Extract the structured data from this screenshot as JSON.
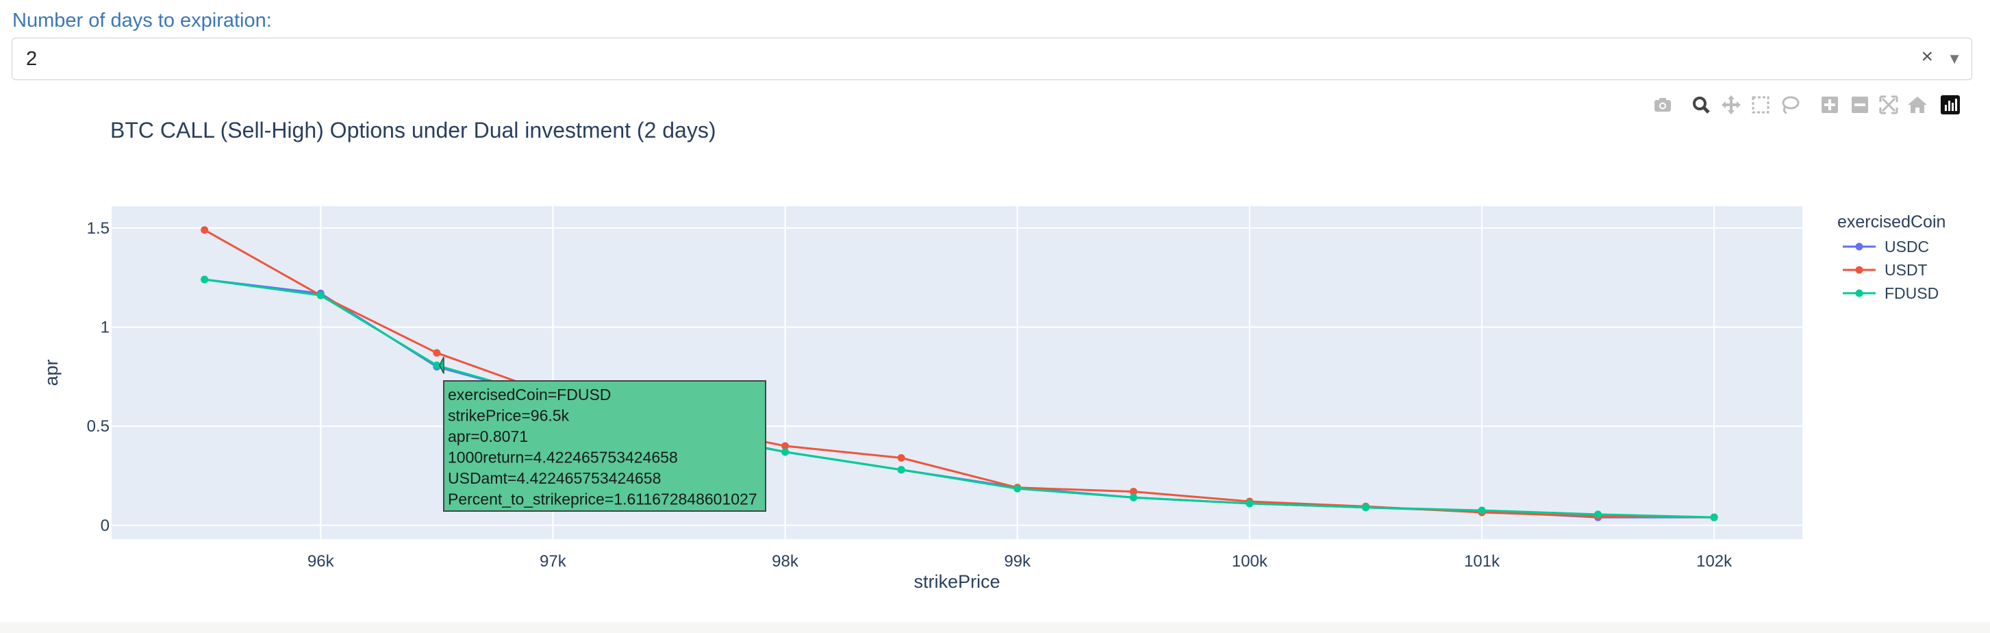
{
  "dropdown": {
    "label": "Number of days to expiration:",
    "value": "2",
    "clear_glyph": "×",
    "arrow_glyph": "▼"
  },
  "modebar": [
    "camera-icon",
    "zoom-icon",
    "pan-icon",
    "box-select-icon",
    "lasso-select-icon",
    "zoom-in-icon",
    "zoom-out-icon",
    "autoscale-icon",
    "reset-axes-icon",
    "plotly-logo-icon"
  ],
  "colors": {
    "plot_bg": "#e5ecf6",
    "grid": "#ffffff",
    "text": "#2a3f5f",
    "series": [
      "#636efa",
      "#ef553b",
      "#00cc96"
    ]
  },
  "chart_data": {
    "type": "line",
    "title": "BTC CALL (Sell-High) Options under Dual investment (2 days)",
    "xlabel": "strikePrice",
    "ylabel": "apr",
    "xlim": [
      95100,
      102380
    ],
    "ylim": [
      -0.07,
      1.61
    ],
    "xticks": [
      96000,
      97000,
      98000,
      99000,
      100000,
      101000,
      102000
    ],
    "xtick_labels": [
      "96k",
      "97k",
      "98k",
      "99k",
      "100k",
      "101k",
      "102k"
    ],
    "yticks": [
      0,
      0.5,
      1,
      1.5
    ],
    "ytick_labels": [
      "0",
      "0.5",
      "1",
      "1.5"
    ],
    "grid": true,
    "legend_title": "exercisedCoin",
    "legend_position": "right",
    "series": [
      {
        "name": "USDC",
        "x": [
          95500,
          96000,
          96500,
          97000,
          97500,
          98000,
          98500,
          99000,
          99500,
          100000,
          100500,
          101000,
          101500,
          102000
        ],
        "y": [
          1.24,
          1.17,
          0.8,
          0.64,
          0.48,
          0.37,
          0.28,
          0.19,
          0.14,
          0.11,
          0.09,
          0.07,
          0.04,
          0.04
        ]
      },
      {
        "name": "USDT",
        "x": [
          95500,
          96000,
          96500,
          97000,
          97500,
          98000,
          98500,
          99000,
          99500,
          100000,
          100500,
          101000,
          101500,
          102000
        ],
        "y": [
          1.49,
          1.16,
          0.87,
          0.66,
          0.52,
          0.4,
          0.34,
          0.19,
          0.17,
          0.12,
          0.095,
          0.065,
          0.045,
          0.04
        ]
      },
      {
        "name": "FDUSD",
        "x": [
          95500,
          96000,
          96500,
          97000,
          97500,
          98000,
          98500,
          99000,
          99500,
          100000,
          100500,
          101000,
          101500,
          102000
        ],
        "y": [
          1.24,
          1.16,
          0.8071,
          0.64,
          0.49,
          0.37,
          0.28,
          0.185,
          0.14,
          0.11,
          0.09,
          0.075,
          0.055,
          0.04
        ]
      }
    ],
    "hover": {
      "series_index": 2,
      "point_index": 2,
      "lines": [
        "exercisedCoin=FDUSD",
        "strikePrice=96.5k",
        "apr=0.8071",
        "1000return=4.422465753424658",
        "USDamt=4.422465753424658",
        "Percent_to_strikeprice=1.611672848601027"
      ]
    }
  }
}
